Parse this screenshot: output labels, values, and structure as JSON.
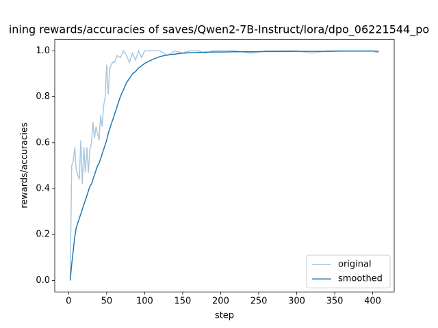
{
  "chart_data": {
    "type": "line",
    "title": "ining rewards/accuracies of saves/Qwen2-7B-Instruct/lora/dpo_06221544_po",
    "xlabel": "step",
    "ylabel": "rewards/accuracies",
    "x": [
      2,
      4,
      6,
      8,
      10,
      12,
      14,
      16,
      18,
      20,
      22,
      24,
      26,
      28,
      30,
      32,
      34,
      36,
      38,
      40,
      42,
      44,
      46,
      48,
      50,
      52,
      54,
      56,
      58,
      60,
      64,
      68,
      72,
      76,
      80,
      84,
      88,
      92,
      96,
      100,
      110,
      120,
      130,
      140,
      150,
      160,
      170,
      180,
      190,
      200,
      220,
      240,
      260,
      280,
      300,
      320,
      340,
      360,
      380,
      400,
      408
    ],
    "series": [
      {
        "name": "original",
        "color": "#a6c8e1",
        "values": [
          0.0,
          0.5,
          0.52,
          0.58,
          0.48,
          0.46,
          0.44,
          0.61,
          0.42,
          0.58,
          0.47,
          0.58,
          0.47,
          0.57,
          0.6,
          0.69,
          0.62,
          0.67,
          0.64,
          0.61,
          0.72,
          0.67,
          0.76,
          0.8,
          0.94,
          0.81,
          0.92,
          0.94,
          0.95,
          0.95,
          0.98,
          0.97,
          1.0,
          0.98,
          0.95,
          0.99,
          0.96,
          1.0,
          0.97,
          1.0,
          1.0,
          1.0,
          0.98,
          1.0,
          0.99,
          1.0,
          1.0,
          0.99,
          1.0,
          1.0,
          1.0,
          0.99,
          1.0,
          1.0,
          1.0,
          0.99,
          1.0,
          1.0,
          1.0,
          1.0,
          0.99
        ]
      },
      {
        "name": "smoothed",
        "color": "#1f77b4",
        "values": [
          0.0,
          0.07,
          0.13,
          0.19,
          0.23,
          0.25,
          0.27,
          0.29,
          0.31,
          0.33,
          0.35,
          0.37,
          0.39,
          0.41,
          0.42,
          0.44,
          0.46,
          0.48,
          0.5,
          0.51,
          0.53,
          0.55,
          0.57,
          0.59,
          0.61,
          0.64,
          0.66,
          0.68,
          0.7,
          0.72,
          0.76,
          0.8,
          0.83,
          0.86,
          0.88,
          0.9,
          0.91,
          0.925,
          0.935,
          0.945,
          0.962,
          0.975,
          0.982,
          0.986,
          0.99,
          0.992,
          0.993,
          0.994,
          0.995,
          0.995,
          0.996,
          0.996,
          0.997,
          0.997,
          0.998,
          0.998,
          0.998,
          0.999,
          0.999,
          0.999,
          0.998
        ]
      }
    ],
    "xlim": [
      -18.3,
      428.3
    ],
    "xticks": [
      0,
      50,
      100,
      150,
      200,
      250,
      300,
      350,
      400
    ],
    "ylim": [
      -0.05,
      1.05
    ],
    "yticks": [
      {
        "value": 0,
        "label": "0.0"
      },
      {
        "value": 0.2,
        "label": "0.2"
      },
      {
        "value": 0.4,
        "label": "0.4"
      },
      {
        "value": 0.6,
        "label": "0.6"
      },
      {
        "value": 0.8,
        "label": "0.8"
      },
      {
        "value": 1,
        "label": "1.0"
      }
    ],
    "legend": "lower right"
  }
}
